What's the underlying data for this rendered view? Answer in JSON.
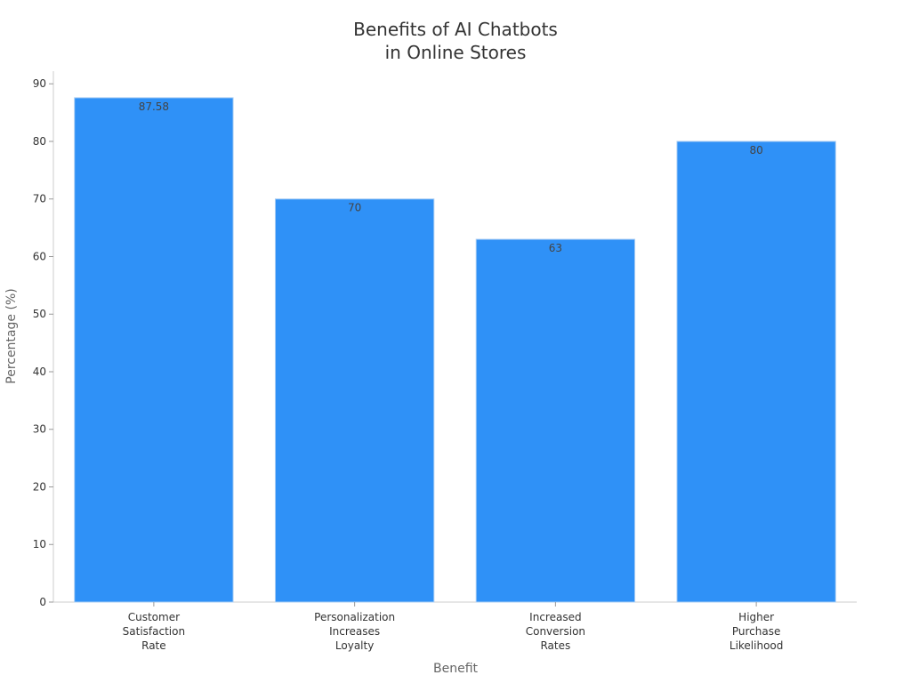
{
  "chart_data": {
    "type": "bar",
    "title": [
      "Benefits of AI Chatbots",
      "in Online Stores"
    ],
    "x_label": "Benefit",
    "y_label": "Percentage (%)",
    "categories": [
      "Customer Satisfaction Rate",
      "Personalization Increases Loyalty",
      "Increased Conversion Rates",
      "Higher Purchase Likelihood"
    ],
    "values": [
      87.58,
      70,
      63,
      80
    ],
    "color": "#2f91f7",
    "ylim": [
      0,
      92.2
    ],
    "yticks": [
      0,
      10,
      20,
      30,
      40,
      50,
      60,
      70,
      80,
      90
    ],
    "grid": false
  }
}
